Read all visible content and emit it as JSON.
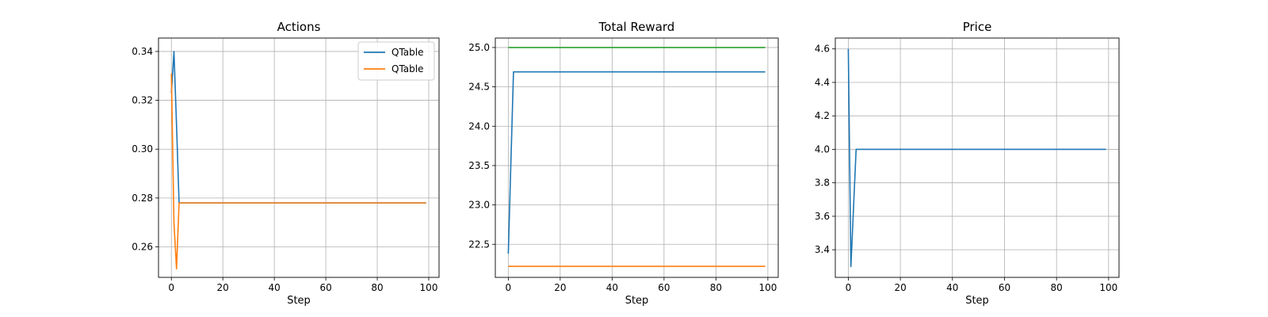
{
  "chart_data": [
    {
      "type": "line",
      "title": "Actions",
      "xlabel": "Step",
      "ylabel": "",
      "xlim": [
        -5,
        104
      ],
      "ylim": [
        0.2475,
        0.3455
      ],
      "xticks": [
        0,
        20,
        40,
        60,
        80,
        100
      ],
      "yticks": [
        0.26,
        0.28,
        0.3,
        0.32,
        0.34
      ],
      "ytick_decimals": 2,
      "grid": true,
      "legend": "top-right",
      "series": [
        {
          "name": "QTable",
          "color": "#1f77b4",
          "x": [
            0,
            1,
            2,
            3,
            99
          ],
          "y": [
            0.323,
            0.34,
            0.31,
            0.278,
            0.278
          ]
        },
        {
          "name": "QTable",
          "color": "#ff7f0e",
          "x": [
            0,
            1,
            2,
            3,
            99
          ],
          "y": [
            0.331,
            0.27,
            0.251,
            0.278,
            0.278
          ]
        }
      ]
    },
    {
      "type": "line",
      "title": "Total Reward",
      "xlabel": "Step",
      "ylabel": "",
      "xlim": [
        -5,
        104
      ],
      "ylim": [
        22.08,
        25.12
      ],
      "xticks": [
        0,
        20,
        40,
        60,
        80,
        100
      ],
      "yticks": [
        22.5,
        23.0,
        23.5,
        24.0,
        24.5,
        25.0
      ],
      "ytick_decimals": 1,
      "grid": true,
      "legend": "none",
      "series": [
        {
          "color": "#1f77b4",
          "x": [
            0,
            2,
            99
          ],
          "y": [
            22.38,
            24.69,
            24.69
          ]
        },
        {
          "color": "#ff7f0e",
          "x": [
            0,
            99
          ],
          "y": [
            22.22,
            22.22
          ]
        },
        {
          "color": "#2ca02c",
          "x": [
            0,
            99
          ],
          "y": [
            25.0,
            25.0
          ]
        }
      ]
    },
    {
      "type": "line",
      "title": "Price",
      "xlabel": "Step",
      "ylabel": "",
      "xlim": [
        -5,
        104
      ],
      "ylim": [
        3.235,
        4.665
      ],
      "xticks": [
        0,
        20,
        40,
        60,
        80,
        100
      ],
      "yticks": [
        3.4,
        3.6,
        3.8,
        4.0,
        4.2,
        4.4,
        4.6
      ],
      "ytick_decimals": 1,
      "grid": true,
      "legend": "none",
      "series": [
        {
          "color": "#1f77b4",
          "x": [
            0,
            1,
            3,
            99
          ],
          "y": [
            4.6,
            3.3,
            4.0,
            4.0
          ]
        }
      ]
    }
  ]
}
